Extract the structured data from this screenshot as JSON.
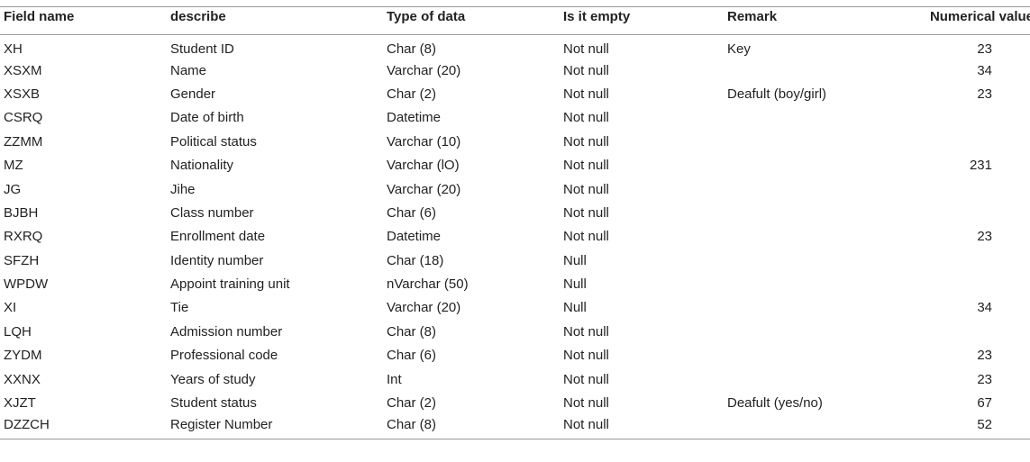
{
  "table": {
    "headers": [
      "Field name",
      "describe",
      "Type of data",
      "Is it empty",
      "Remark",
      "Numerical value"
    ],
    "rows": [
      [
        "XH",
        "Student ID",
        "Char (8)",
        "Not null",
        "Key",
        "23"
      ],
      [
        "XSXM",
        "Name",
        "Varchar (20)",
        "Not null",
        "",
        "34"
      ],
      [
        "XSXB",
        "Gender",
        "Char (2)",
        "Not null",
        "Deafult (boy/girl)",
        "23"
      ],
      [
        "CSRQ",
        "Date of birth",
        "Datetime",
        "Not null",
        "",
        ""
      ],
      [
        "ZZMM",
        "Political status",
        "Varchar (10)",
        "Not null",
        "",
        ""
      ],
      [
        "MZ",
        "Nationality",
        "Varchar (lO)",
        "Not null",
        "",
        "231"
      ],
      [
        "JG",
        "Jihe",
        "Varchar (20)",
        "Not null",
        "",
        ""
      ],
      [
        "BJBH",
        "Class number",
        "Char (6)",
        "Not null",
        "",
        ""
      ],
      [
        "RXRQ",
        "Enrollment date",
        "Datetime",
        "Not null",
        "",
        "23"
      ],
      [
        "SFZH",
        "Identity number",
        "Char (18)",
        "Null",
        "",
        ""
      ],
      [
        "WPDW",
        "Appoint training unit",
        "nVarchar (50)",
        "Null",
        "",
        ""
      ],
      [
        "XI",
        "Tie",
        "Varchar (20)",
        "Null",
        "",
        "34"
      ],
      [
        "LQH",
        "Admission number",
        "Char (8)",
        "Not null",
        "",
        ""
      ],
      [
        "ZYDM",
        "Professional code",
        "Char (6)",
        "Not null",
        "",
        "23"
      ],
      [
        "XXNX",
        "Years of study",
        "Int",
        "Not null",
        "",
        "23"
      ],
      [
        "XJZT",
        "Student status",
        "Char (2)",
        "Not null",
        "Deafult (yes/no)",
        "67"
      ],
      [
        "DZZCH",
        "Register Number",
        "Char (8)",
        "Not null",
        "",
        "52"
      ]
    ]
  }
}
